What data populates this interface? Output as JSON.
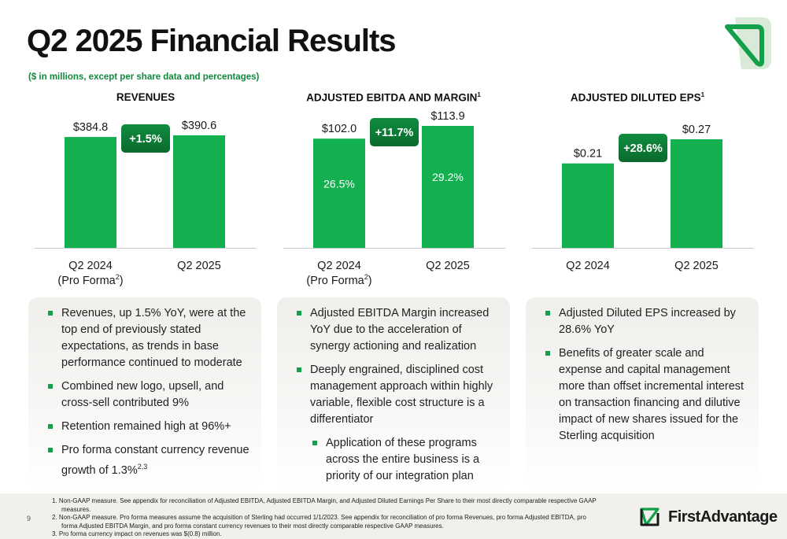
{
  "header": {
    "title": "Q2 2025 Financial Results",
    "subtitle": "($ in millions, except per share data and percentages)"
  },
  "charts": {
    "revenues": {
      "title": "REVENUES",
      "sup": ""
    },
    "ebitda": {
      "title": "ADJUSTED EBITDA AND MARGIN",
      "sup": "1"
    },
    "eps": {
      "title": "ADJUSTED DILUTED EPS",
      "sup": "1"
    }
  },
  "chart_data": [
    {
      "type": "bar",
      "title": "REVENUES",
      "categories": [
        "Q2 2024 (Pro Forma2)",
        "Q2 2025"
      ],
      "values": [
        384.8,
        390.6
      ],
      "value_labels": [
        "$384.8",
        "$390.6"
      ],
      "change_label": "+1.5%",
      "cat_line1": [
        "Q2 2024",
        "Q2 2025"
      ],
      "cat_line2": [
        "(Pro Forma",
        ""
      ],
      "cat_sup": [
        "2",
        ""
      ],
      "bar_color": "#12b04f"
    },
    {
      "type": "bar",
      "title": "ADJUSTED EBITDA AND MARGIN",
      "categories": [
        "Q2 2024 (Pro Forma2)",
        "Q2 2025"
      ],
      "values": [
        102.0,
        113.9
      ],
      "value_labels": [
        "$102.0",
        "$113.9"
      ],
      "inner_labels": [
        "26.5%",
        "29.2%"
      ],
      "change_label": "+11.7%",
      "cat_line1": [
        "Q2 2024",
        "Q2 2025"
      ],
      "cat_line2": [
        "(Pro Forma",
        ""
      ],
      "cat_sup": [
        "2",
        ""
      ],
      "bar_color": "#12b04f"
    },
    {
      "type": "bar",
      "title": "ADJUSTED DILUTED EPS",
      "categories": [
        "Q2 2024",
        "Q2 2025"
      ],
      "values": [
        0.21,
        0.27
      ],
      "value_labels": [
        "$0.21",
        "$0.27"
      ],
      "change_label": "+28.6%",
      "cat_line1": [
        "Q2 2024",
        "Q2 2025"
      ],
      "cat_line2": [
        "",
        ""
      ],
      "cat_sup": [
        "",
        ""
      ],
      "bar_color": "#12b04f"
    }
  ],
  "panels": {
    "revenues": [
      {
        "text": "Revenues, up 1.5% YoY, were at the top end of previously stated expectations, as trends in base performance continued to moderate",
        "sup": ""
      },
      {
        "text": "Combined new logo, upsell, and cross-sell contributed 9%",
        "sup": ""
      },
      {
        "text": "Retention remained high at 96%+",
        "sup": ""
      },
      {
        "text": "Pro forma constant currency revenue growth of 1.3%",
        "sup": "2,3"
      }
    ],
    "ebitda": [
      {
        "text": "Adjusted EBITDA Margin increased YoY due to the acceleration of synergy actioning and realization",
        "sup": ""
      },
      {
        "text": "Deeply engrained, disciplined cost management approach within highly variable, flexible cost structure is a differentiator",
        "sup": ""
      },
      {
        "text": "Application of these programs across the entire business is a priority of our integration plan",
        "sup": "",
        "sub": true
      }
    ],
    "eps": [
      {
        "text": "Adjusted Diluted EPS increased by 28.6% YoY",
        "sup": ""
      },
      {
        "text": "Benefits of greater scale and expense and capital management more than offset incremental interest on transaction financing and dilutive impact of new shares issued for the Sterling acquisition",
        "sup": ""
      }
    ]
  },
  "footer": {
    "page_number": "9",
    "footnotes": [
      "1.  Non-GAAP measure. See appendix for reconciliation of Adjusted EBITDA, Adjusted EBITDA Margin, and Adjusted Diluted Earnings Per Share to their most directly comparable respective GAAP measures.",
      "2.  Non-GAAP measure. Pro forma measures assume the acquisition of Sterling had occurred 1/1/2023. See appendix for reconciliation of pro forma Revenues, pro forma Adjusted EBITDA, pro forma Adjusted EBITDA Margin, and pro forma constant currency revenues to their most directly comparable respective GAAP measures.",
      "3.  Pro forma currency impact on revenues was $(0.8) million."
    ],
    "brand_first": "First",
    "brand_adv": "Advantage"
  },
  "colors": {
    "accent": "#12b04f",
    "badge_dark": "#0b6a2e",
    "subtitle": "#0f8a3c"
  }
}
